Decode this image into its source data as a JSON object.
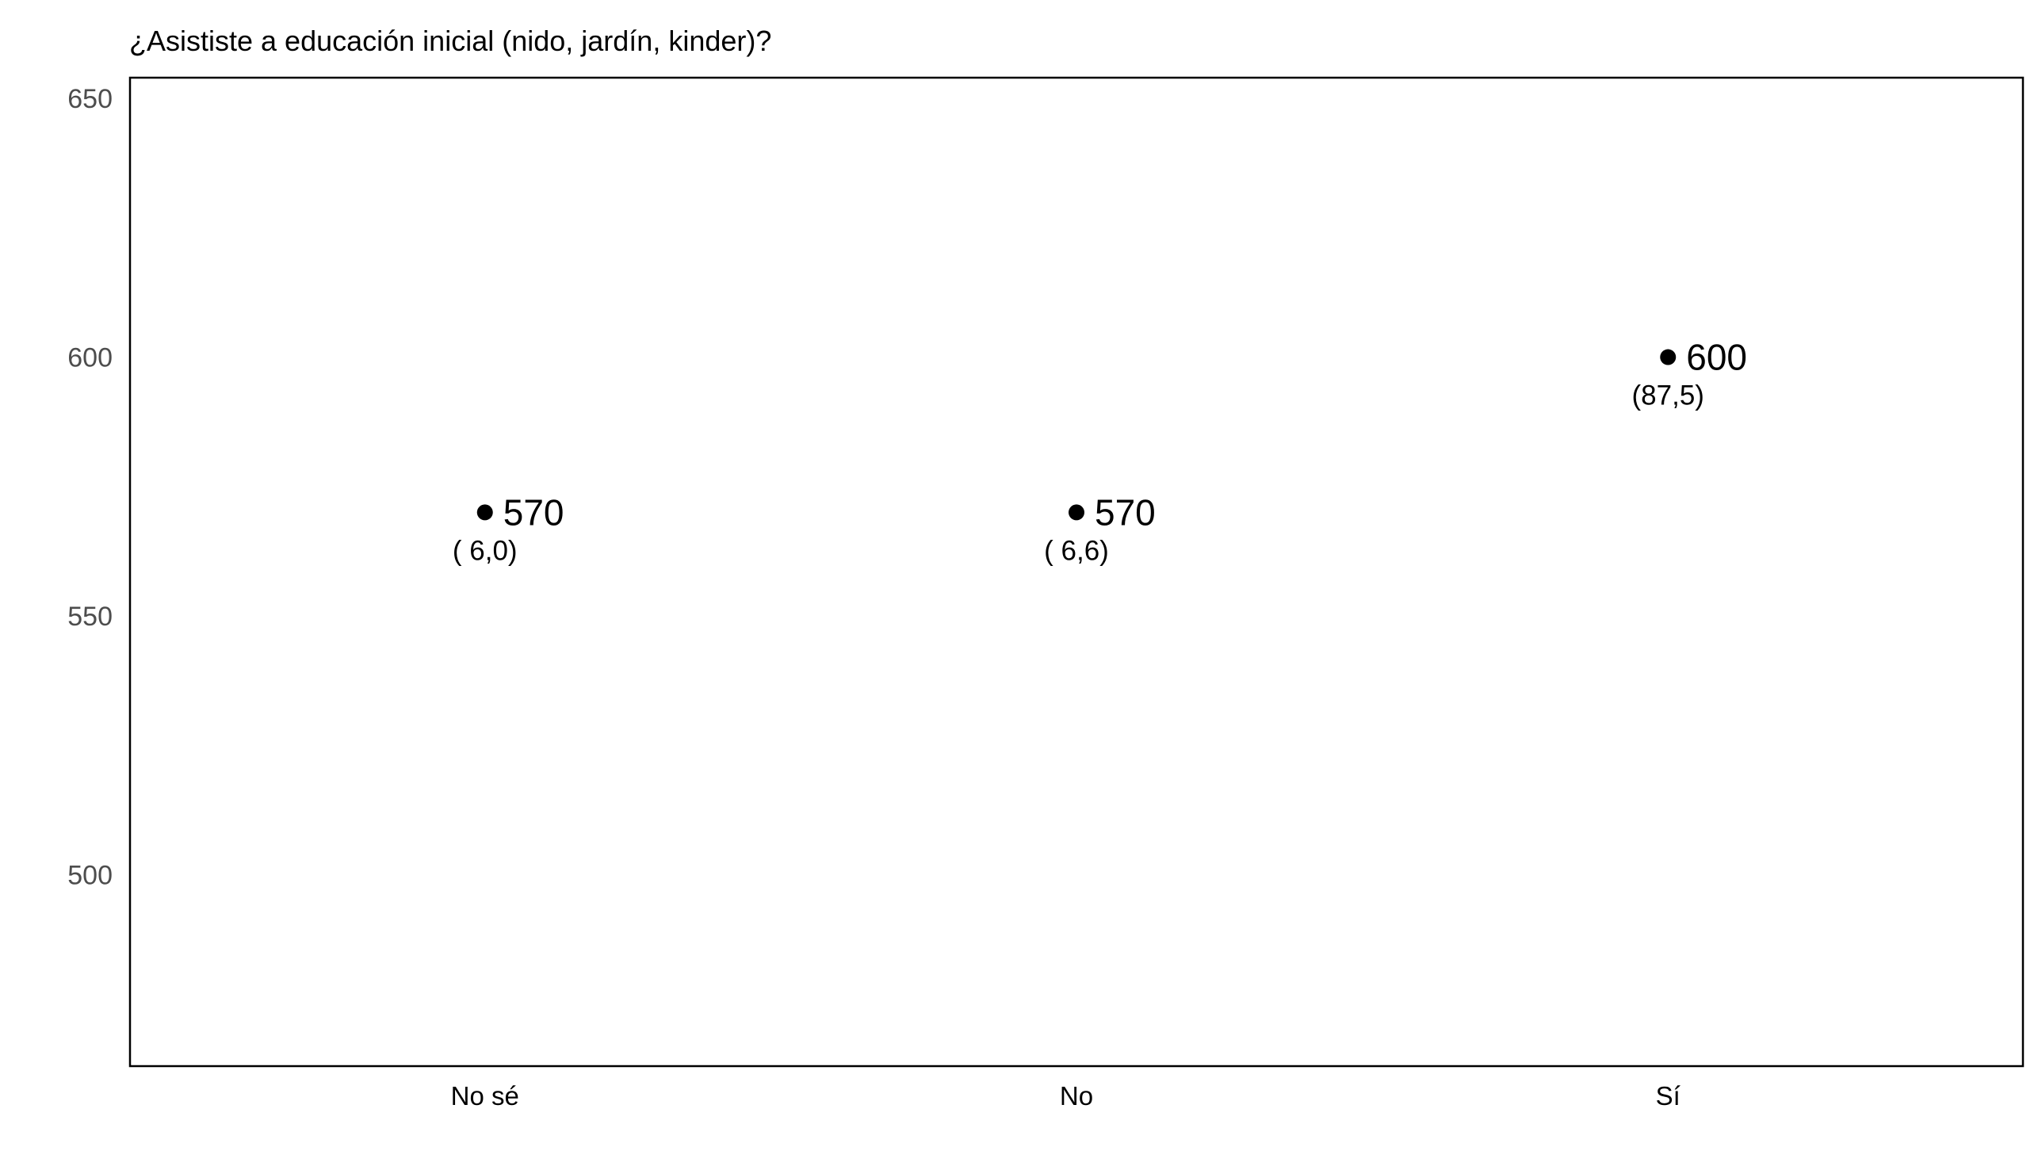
{
  "chart_data": {
    "type": "scatter",
    "title": "¿Asististe a educación inicial (nido, jardín, kinder)?",
    "xlabel": "",
    "ylabel": "",
    "categories": [
      "No sé",
      "No",
      "Sí"
    ],
    "values": [
      570,
      570,
      600
    ],
    "value_labels": [
      "570",
      "570",
      "600"
    ],
    "percent_labels": [
      "( 6,0)",
      "( 6,6)",
      "(87,5)"
    ],
    "ylim": [
      463,
      654
    ],
    "y_ticks": [
      500,
      550,
      600,
      650
    ],
    "grid": false,
    "legend": "none",
    "colors": {
      "point": "#000000",
      "frame": "#000000",
      "y_tick_text": "#4d4d4d"
    }
  }
}
